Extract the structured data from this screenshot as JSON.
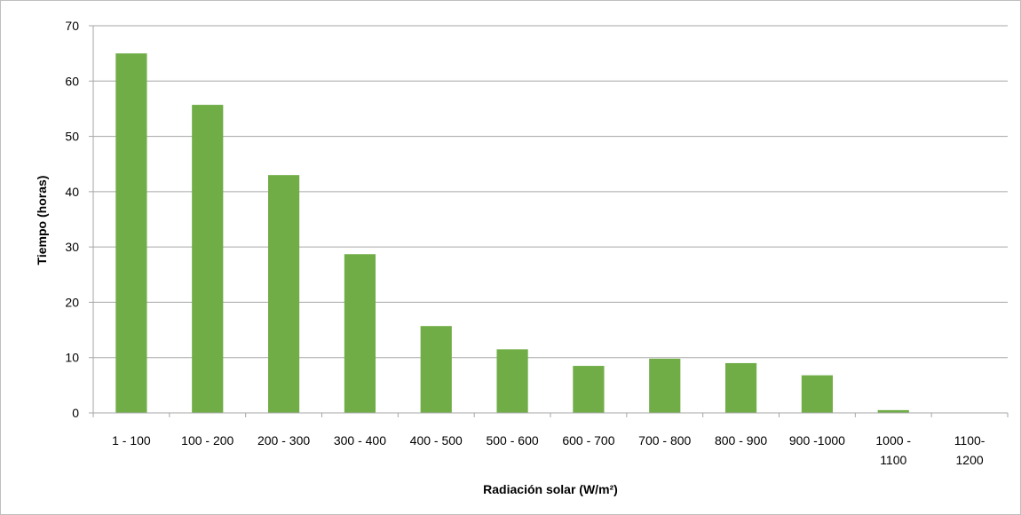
{
  "chart_data": {
    "type": "bar",
    "title": "",
    "xlabel": "Radiación solar (W/m²)",
    "ylabel": "Tiempo (horas)",
    "ylim": [
      0,
      70
    ],
    "yticks": [
      0,
      10,
      20,
      30,
      40,
      50,
      60,
      70
    ],
    "grid": true,
    "legend": "none",
    "categories": [
      [
        "1 - 100"
      ],
      [
        "100 - 200"
      ],
      [
        "200 - 300"
      ],
      [
        "300 - 400"
      ],
      [
        "400 - 500"
      ],
      [
        "500 - 600"
      ],
      [
        "600 - 700"
      ],
      [
        "700 - 800"
      ],
      [
        "800 - 900"
      ],
      [
        "900 -1000"
      ],
      [
        "1000 -",
        "1100"
      ],
      [
        "1100-",
        "1200"
      ]
    ],
    "values": [
      65,
      55.7,
      43,
      28.7,
      15.7,
      11.5,
      8.5,
      9.8,
      9,
      6.8,
      0.5,
      0
    ],
    "bar_color": "#70ad47",
    "grid_color": "#a6a6a6"
  }
}
